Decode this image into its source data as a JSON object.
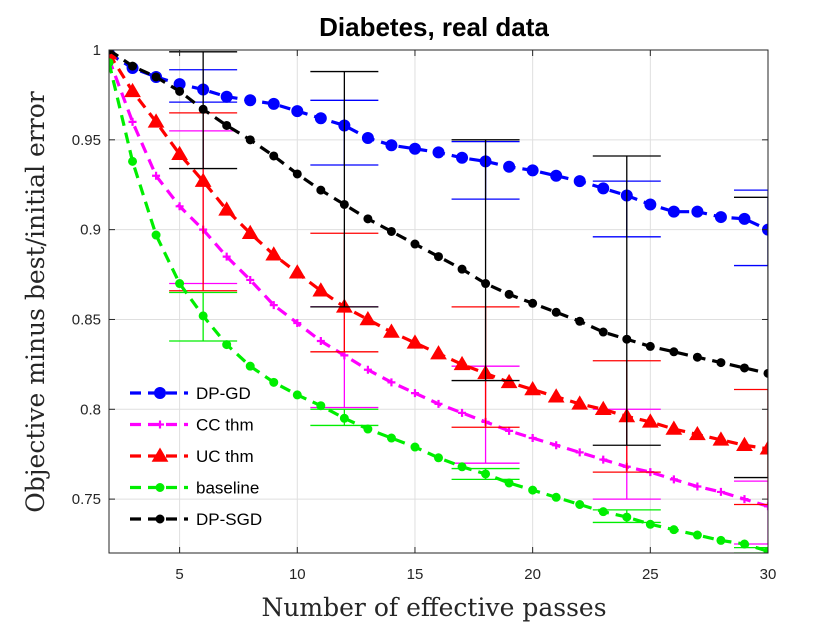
{
  "chart_data": {
    "type": "line",
    "title": "Diabetes, real data",
    "xlabel": "Number of effective passes",
    "ylabel": "Objective minus best/initial error",
    "xlim": [
      2,
      30
    ],
    "ylim": [
      0.72,
      1.0
    ],
    "xticks": [
      5,
      10,
      15,
      20,
      25,
      30
    ],
    "yticks": [
      0.75,
      0.8,
      0.85,
      0.9,
      0.95,
      1
    ],
    "ytick_labels": [
      "0.75",
      "0.8",
      "0.85",
      "0.9",
      "0.95",
      "1"
    ],
    "grid": true,
    "legend_position": "bottom-left",
    "series": [
      {
        "name": "DP-GD",
        "color": "#0000ff",
        "marker": "circle",
        "x": [
          2,
          3,
          4,
          5,
          6,
          7,
          8,
          9,
          10,
          11,
          12,
          13,
          14,
          15,
          16,
          17,
          18,
          19,
          20,
          21,
          22,
          23,
          24,
          25,
          26,
          27,
          28,
          29,
          30
        ],
        "values": [
          0.998,
          0.99,
          0.985,
          0.981,
          0.978,
          0.974,
          0.972,
          0.97,
          0.966,
          0.962,
          0.958,
          0.951,
          0.947,
          0.945,
          0.943,
          0.94,
          0.938,
          0.935,
          0.933,
          0.93,
          0.927,
          0.923,
          0.919,
          0.914,
          0.91,
          0.91,
          0.907,
          0.906,
          0.9
        ],
        "error_bars": [
          {
            "x": 6,
            "low": 0.971,
            "high": 0.989
          },
          {
            "x": 12,
            "low": 0.936,
            "high": 0.972
          },
          {
            "x": 18,
            "low": 0.917,
            "high": 0.949
          },
          {
            "x": 24,
            "low": 0.896,
            "high": 0.927
          },
          {
            "x": 30,
            "low": 0.88,
            "high": 0.922
          }
        ]
      },
      {
        "name": "CC thm",
        "color": "#ff00ff",
        "marker": "plus",
        "x": [
          2,
          3,
          4,
          5,
          6,
          7,
          8,
          9,
          10,
          11,
          12,
          13,
          14,
          15,
          16,
          17,
          18,
          19,
          20,
          21,
          22,
          23,
          24,
          25,
          26,
          27,
          28,
          29,
          30
        ],
        "values": [
          0.995,
          0.96,
          0.93,
          0.913,
          0.9,
          0.885,
          0.872,
          0.858,
          0.848,
          0.838,
          0.83,
          0.822,
          0.815,
          0.809,
          0.803,
          0.798,
          0.793,
          0.788,
          0.784,
          0.78,
          0.776,
          0.772,
          0.768,
          0.765,
          0.761,
          0.757,
          0.754,
          0.75,
          0.746
        ],
        "error_bars": [
          {
            "x": 6,
            "low": 0.87,
            "high": 0.955
          },
          {
            "x": 12,
            "low": 0.801,
            "high": 0.857
          },
          {
            "x": 18,
            "low": 0.77,
            "high": 0.824
          },
          {
            "x": 24,
            "low": 0.75,
            "high": 0.8
          },
          {
            "x": 30,
            "low": 0.725,
            "high": 0.76
          }
        ]
      },
      {
        "name": "UC thm",
        "color": "#ff0000",
        "marker": "triangle",
        "x": [
          2,
          3,
          4,
          5,
          6,
          7,
          8,
          9,
          10,
          11,
          12,
          13,
          14,
          15,
          16,
          17,
          18,
          19,
          20,
          21,
          22,
          23,
          24,
          25,
          26,
          27,
          28,
          29,
          30
        ],
        "values": [
          0.998,
          0.977,
          0.96,
          0.942,
          0.927,
          0.911,
          0.898,
          0.886,
          0.876,
          0.866,
          0.857,
          0.85,
          0.843,
          0.837,
          0.831,
          0.825,
          0.82,
          0.815,
          0.811,
          0.807,
          0.803,
          0.8,
          0.796,
          0.793,
          0.789,
          0.786,
          0.783,
          0.78,
          0.778
        ],
        "error_bars": [
          {
            "x": 6,
            "low": 0.866,
            "high": 0.965
          },
          {
            "x": 12,
            "low": 0.832,
            "high": 0.898
          },
          {
            "x": 18,
            "low": 0.79,
            "high": 0.857
          },
          {
            "x": 24,
            "low": 0.765,
            "high": 0.827
          },
          {
            "x": 30,
            "low": 0.747,
            "high": 0.811
          }
        ]
      },
      {
        "name": "baseline",
        "color": "#00ee00",
        "marker": "dot",
        "x": [
          2,
          3,
          4,
          5,
          6,
          7,
          8,
          9,
          10,
          11,
          12,
          13,
          14,
          15,
          16,
          17,
          18,
          19,
          20,
          21,
          22,
          23,
          24,
          25,
          26,
          27,
          28,
          29,
          30
        ],
        "values": [
          0.993,
          0.938,
          0.897,
          0.87,
          0.852,
          0.836,
          0.824,
          0.815,
          0.808,
          0.802,
          0.795,
          0.789,
          0.784,
          0.779,
          0.773,
          0.768,
          0.764,
          0.759,
          0.755,
          0.751,
          0.747,
          0.743,
          0.74,
          0.736,
          0.733,
          0.73,
          0.727,
          0.725,
          0.721
        ],
        "error_bars": [
          {
            "x": 6,
            "low": 0.838,
            "high": 0.865
          },
          {
            "x": 12,
            "low": 0.791,
            "high": 0.8
          },
          {
            "x": 18,
            "low": 0.761,
            "high": 0.767
          },
          {
            "x": 24,
            "low": 0.737,
            "high": 0.744
          },
          {
            "x": 30,
            "low": 0.72,
            "high": 0.723
          }
        ]
      },
      {
        "name": "DP-SGD",
        "color": "#000000",
        "marker": "dot",
        "x": [
          2,
          3,
          4,
          5,
          6,
          7,
          8,
          9,
          10,
          11,
          12,
          13,
          14,
          15,
          16,
          17,
          18,
          19,
          20,
          21,
          22,
          23,
          24,
          25,
          26,
          27,
          28,
          29,
          30
        ],
        "values": [
          1.0,
          0.991,
          0.985,
          0.977,
          0.967,
          0.958,
          0.95,
          0.941,
          0.931,
          0.922,
          0.914,
          0.906,
          0.899,
          0.892,
          0.885,
          0.878,
          0.87,
          0.864,
          0.859,
          0.854,
          0.849,
          0.843,
          0.839,
          0.835,
          0.832,
          0.829,
          0.826,
          0.823,
          0.82
        ],
        "error_bars": [
          {
            "x": 6,
            "low": 0.934,
            "high": 0.999
          },
          {
            "x": 12,
            "low": 0.857,
            "high": 0.988
          },
          {
            "x": 18,
            "low": 0.816,
            "high": 0.95
          },
          {
            "x": 24,
            "low": 0.78,
            "high": 0.941
          },
          {
            "x": 30,
            "low": 0.762,
            "high": 0.918
          }
        ]
      }
    ]
  }
}
